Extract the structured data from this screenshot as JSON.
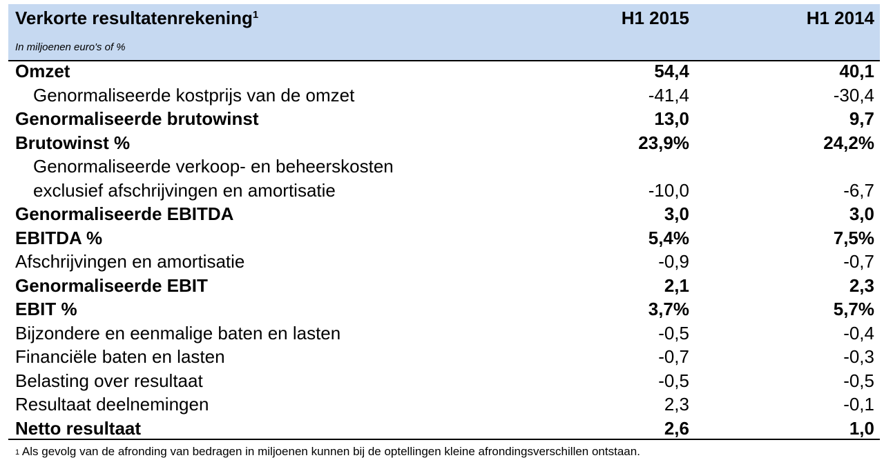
{
  "header": {
    "title": "Verkorte resultatenrekening",
    "title_footnote_mark": "1",
    "subtitle": "In miljoenen euro's of %",
    "columns": [
      "H1 2015",
      "H1 2014"
    ],
    "background_color": "#c6d9f1"
  },
  "rows": [
    {
      "label": "Omzet",
      "v1": "54,4",
      "v2": "40,1",
      "bold": true,
      "indent": false
    },
    {
      "label": "Genormaliseerde kostprijs van de omzet",
      "v1": "-41,4",
      "v2": "-30,4",
      "bold": false,
      "indent": true
    },
    {
      "label": "Genormaliseerde brutowinst",
      "v1": "13,0",
      "v2": "9,7",
      "bold": true,
      "indent": false
    },
    {
      "label": "Brutowinst %",
      "v1": "23,9%",
      "v2": "24,2%",
      "bold": true,
      "indent": false
    },
    {
      "label": "Genormaliseerde verkoop- en beheerskosten",
      "label2": "exclusief afschrijvingen en amortisatie",
      "v1": "-10,0",
      "v2": "-6,7",
      "bold": false,
      "indent": true
    },
    {
      "label": "Genormaliseerde EBITDA",
      "v1": "3,0",
      "v2": "3,0",
      "bold": true,
      "indent": false
    },
    {
      "label": "EBITDA %",
      "v1": "5,4%",
      "v2": "7,5%",
      "bold": true,
      "indent": false
    },
    {
      "label": "Afschrijvingen en amortisatie",
      "v1": "-0,9",
      "v2": "-0,7",
      "bold": false,
      "indent": false
    },
    {
      "label": "Genormaliseerde EBIT",
      "v1": "2,1",
      "v2": "2,3",
      "bold": true,
      "indent": false
    },
    {
      "label": "EBIT %",
      "v1": "3,7%",
      "v2": "5,7%",
      "bold": true,
      "indent": false
    },
    {
      "label": "Bijzondere en eenmalige baten en lasten",
      "v1": "-0,5",
      "v2": "-0,4",
      "bold": false,
      "indent": false
    },
    {
      "label": "Financiële baten en lasten",
      "v1": "-0,7",
      "v2": "-0,3",
      "bold": false,
      "indent": false
    },
    {
      "label": "Belasting over resultaat",
      "v1": "-0,5",
      "v2": "-0,5",
      "bold": false,
      "indent": false
    },
    {
      "label": "Resultaat deelnemingen",
      "v1": "2,3",
      "v2": "-0,1",
      "bold": false,
      "indent": false
    },
    {
      "label": "Netto resultaat",
      "v1": "2,6",
      "v2": "1,0",
      "bold": true,
      "indent": false
    }
  ],
  "footnote": {
    "mark": "1",
    "text": "Als gevolg van de afronding van bedragen in miljoenen kunnen bij de optellingen kleine afrondingsverschillen ontstaan."
  }
}
